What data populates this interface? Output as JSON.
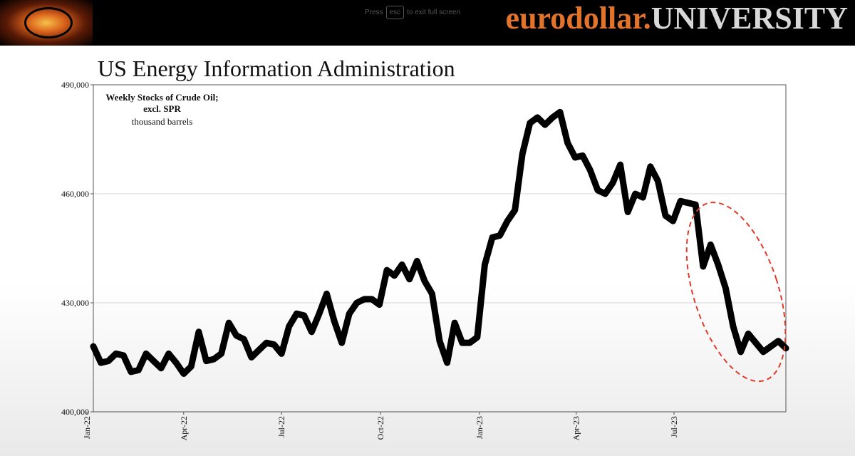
{
  "header": {
    "hint_prefix": "Press",
    "hint_key": "esc",
    "hint_suffix": "to exit full screen",
    "brand_part1": "eurodollar",
    "brand_dot": ".",
    "brand_part2": "UNIVERSITY",
    "colors": {
      "banner": "#000000",
      "brand_accent": "#e2732a",
      "brand_light": "#d8d8d8"
    }
  },
  "slide": {
    "title": "US Energy Information Administration"
  },
  "chart_data": {
    "type": "line",
    "title": "Weekly Stocks of Crude Oil; excl. SPR",
    "title_lines": [
      "Weekly Stocks of Crude Oil;",
      "excl. SPR"
    ],
    "unit_label": "thousand barrels",
    "xlabel": "",
    "ylabel": "",
    "ylim": [
      400000,
      490000
    ],
    "yticks": [
      400000,
      430000,
      460000,
      490000
    ],
    "ytick_labels": [
      "400,000",
      "430,000",
      "460,000",
      "490,000"
    ],
    "x_start": "2022-01-07",
    "x_end": "2023-10-13",
    "xticks": [
      "2022-01-01",
      "2022-04-01",
      "2022-07-01",
      "2022-10-01",
      "2023-01-01",
      "2023-04-01",
      "2023-07-01"
    ],
    "xtick_labels": [
      "Jan-22",
      "Apr-22",
      "Jul-22",
      "Oct-22",
      "Jan-23",
      "Apr-23",
      "Jul-23"
    ],
    "grid": true,
    "line_color": "#000000",
    "annotation": {
      "shape": "ellipse",
      "style": "dashed",
      "color": "#e03a2a",
      "x_range": [
        "2023-07-07",
        "2023-10-13"
      ],
      "y_range": [
        412000,
        465000
      ]
    },
    "series": [
      {
        "name": "Weekly Stocks of Crude Oil; excl. SPR",
        "x": [
          "2022-01-07",
          "2022-01-14",
          "2022-01-21",
          "2022-01-28",
          "2022-02-04",
          "2022-02-11",
          "2022-02-18",
          "2022-02-25",
          "2022-03-04",
          "2022-03-11",
          "2022-03-18",
          "2022-03-25",
          "2022-04-01",
          "2022-04-08",
          "2022-04-15",
          "2022-04-22",
          "2022-04-29",
          "2022-05-06",
          "2022-05-13",
          "2022-05-20",
          "2022-05-27",
          "2022-06-03",
          "2022-06-10",
          "2022-06-17",
          "2022-06-24",
          "2022-07-01",
          "2022-07-08",
          "2022-07-15",
          "2022-07-22",
          "2022-07-29",
          "2022-08-05",
          "2022-08-12",
          "2022-08-19",
          "2022-08-26",
          "2022-09-02",
          "2022-09-09",
          "2022-09-16",
          "2022-09-23",
          "2022-09-30",
          "2022-10-07",
          "2022-10-14",
          "2022-10-21",
          "2022-10-28",
          "2022-11-04",
          "2022-11-11",
          "2022-11-18",
          "2022-11-25",
          "2022-12-02",
          "2022-12-09",
          "2022-12-16",
          "2022-12-23",
          "2022-12-30",
          "2023-01-06",
          "2023-01-13",
          "2023-01-20",
          "2023-01-27",
          "2023-02-03",
          "2023-02-10",
          "2023-02-17",
          "2023-02-24",
          "2023-03-03",
          "2023-03-10",
          "2023-03-17",
          "2023-03-24",
          "2023-03-31",
          "2023-04-07",
          "2023-04-14",
          "2023-04-21",
          "2023-04-28",
          "2023-05-05",
          "2023-05-12",
          "2023-05-19",
          "2023-05-26",
          "2023-06-02",
          "2023-06-09",
          "2023-06-16",
          "2023-06-23",
          "2023-06-30",
          "2023-07-07",
          "2023-07-14",
          "2023-07-21",
          "2023-07-28",
          "2023-08-04",
          "2023-08-11",
          "2023-08-18",
          "2023-08-25",
          "2023-09-01",
          "2023-09-08",
          "2023-09-15",
          "2023-09-22",
          "2023-09-29",
          "2023-10-06",
          "2023-10-13"
        ],
        "values": [
          418000,
          413500,
          414000,
          416000,
          415500,
          411000,
          411500,
          416000,
          414000,
          412000,
          416000,
          413500,
          410500,
          412500,
          422000,
          414000,
          414500,
          416000,
          424500,
          421000,
          420000,
          415000,
          417000,
          419000,
          418500,
          416000,
          423500,
          427000,
          426500,
          422000,
          427000,
          432500,
          425000,
          419000,
          427000,
          430000,
          431000,
          431000,
          429500,
          439000,
          437500,
          440500,
          436500,
          441500,
          436000,
          432500,
          419500,
          413500,
          424500,
          419000,
          419000,
          420500,
          440500,
          448000,
          448500,
          452500,
          455500,
          471000,
          479500,
          481000,
          479000,
          481000,
          482500,
          474000,
          470000,
          470500,
          466500,
          461000,
          460000,
          463000,
          468000,
          455000,
          460000,
          459000,
          467500,
          463500,
          454000,
          452500,
          458000,
          457500,
          457000,
          440000,
          446000,
          440500,
          434000,
          423500,
          416500,
          421500,
          419000,
          416500,
          418000,
          419500,
          417500
        ]
      }
    ]
  }
}
